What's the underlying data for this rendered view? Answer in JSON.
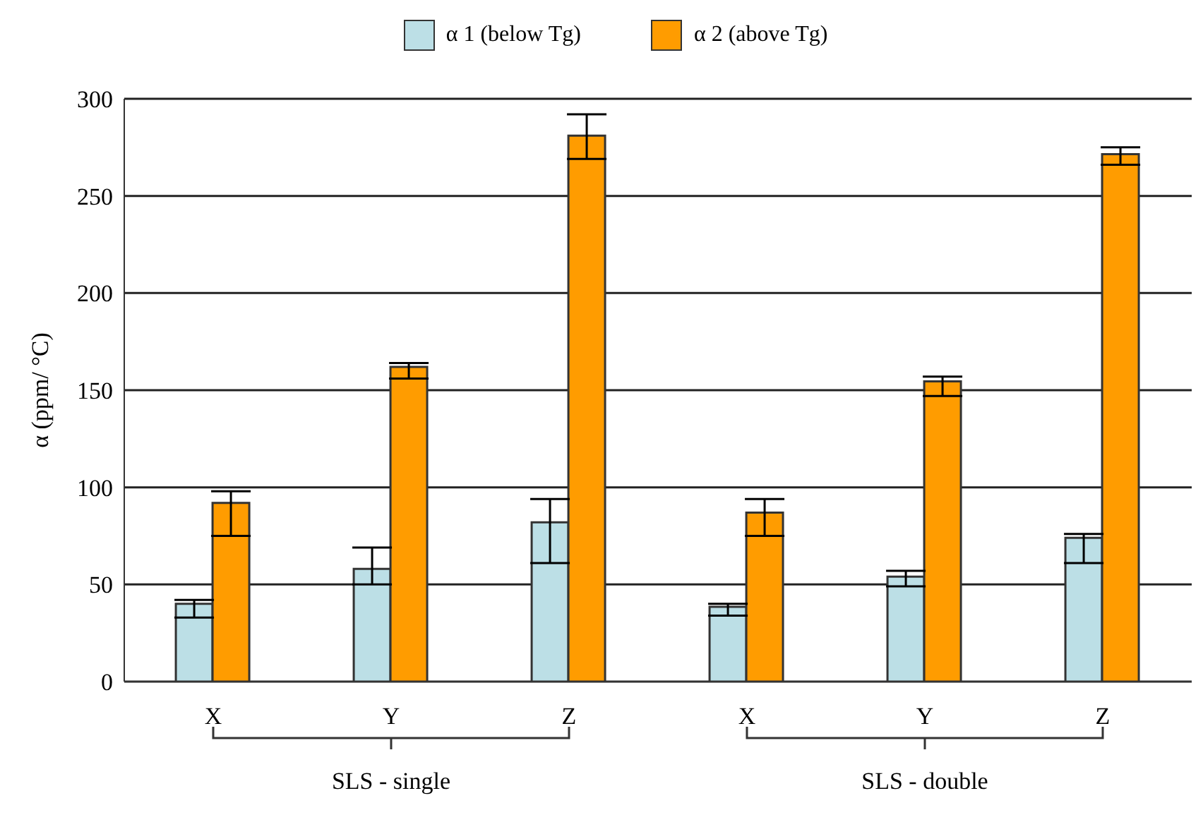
{
  "chart_data": {
    "type": "bar",
    "ylabel": "α (ppm/ °C)",
    "categories": [
      "X",
      "Y",
      "Z",
      "X",
      "Y",
      "Z"
    ],
    "series": [
      {
        "name": "α 1 (below Tg)",
        "color": "#bcdfe6",
        "values": [
          40,
          58,
          82,
          38.5,
          54,
          74
        ],
        "errors": [
          [
            33,
            42
          ],
          [
            50,
            69
          ],
          [
            61,
            94
          ],
          [
            34,
            40
          ],
          [
            49,
            57
          ],
          [
            61,
            76
          ]
        ]
      },
      {
        "name": "α 2 (above Tg)",
        "color": "#ff9c00",
        "values": [
          92,
          162,
          281,
          87,
          154.5,
          271.5
        ],
        "errors": [
          [
            75,
            98
          ],
          [
            156,
            164
          ],
          [
            269,
            292
          ],
          [
            75,
            94
          ],
          [
            147,
            157
          ],
          [
            266,
            275
          ]
        ]
      }
    ],
    "ylim": [
      0,
      300
    ],
    "yticks": [
      0,
      50,
      100,
      150,
      200,
      250,
      300
    ],
    "grid": "y",
    "legend": "top",
    "annotations": [
      "SLS - single",
      "SLS - double"
    ]
  }
}
